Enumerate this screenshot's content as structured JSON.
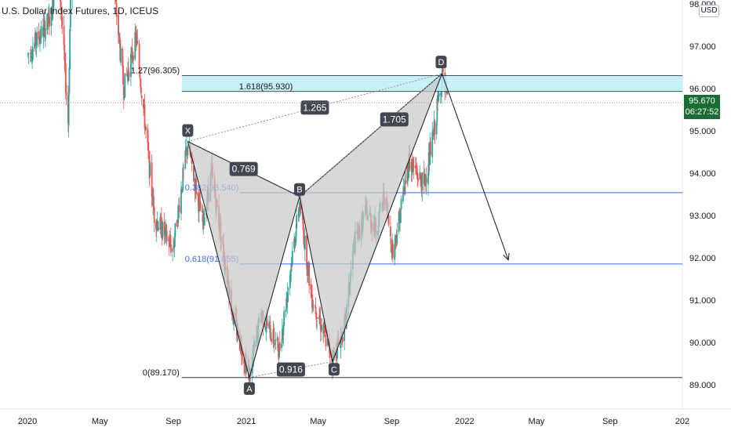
{
  "header": {
    "title": "U.S. Dollar Index Futures, 1D, ICEUS",
    "currency": "USD"
  },
  "price_badge": {
    "price": "95.670",
    "countdown": "06:27:52",
    "color": "#1b6b35"
  },
  "colors": {
    "up": "#26a69a",
    "down": "#ef5350",
    "pattern_fill": "#c8c8c8",
    "zone_fill": "#bdeef2",
    "fib_line": "#3b6ee8"
  },
  "chart_data": {
    "type": "candlestick",
    "symbol": "U.S. Dollar Index Futures",
    "timeframe": "1D",
    "exchange": "ICEUS",
    "x_ticks": [
      "2020",
      "May",
      "Sep",
      "2021",
      "May",
      "Sep",
      "2022",
      "May",
      "Sep",
      "202"
    ],
    "x_range": [
      "2020-01-01",
      "2022-12-31"
    ],
    "y_ticks": [
      "89.000",
      "90.000",
      "91.000",
      "92.000",
      "93.000",
      "94.000",
      "95.000",
      "96.000",
      "97.000",
      "98.000"
    ],
    "y_range": [
      88.5,
      98.0
    ],
    "last_price": 95.67,
    "pattern": {
      "points": [
        {
          "label": "X",
          "date": "2020-09-25",
          "value": 94.75
        },
        {
          "label": "A",
          "date": "2021-01-06",
          "value": 89.17
        },
        {
          "label": "B",
          "date": "2021-03-31",
          "value": 93.45
        },
        {
          "label": "C",
          "date": "2021-05-25",
          "value": 89.55
        },
        {
          "label": "D",
          "date": "2021-11-24",
          "value": 96.35
        }
      ],
      "ratios": [
        {
          "label": "0.769"
        },
        {
          "label": "0.916"
        },
        {
          "label": "1.705"
        },
        {
          "label": "1.265"
        }
      ]
    },
    "fib_levels": [
      {
        "label": "1.27(96.305)",
        "value": 96.305
      },
      {
        "label": "1.618(95.930)",
        "value": 95.93
      },
      {
        "label": "0.382(93.540)",
        "value": 93.54
      },
      {
        "label": "0.618(91.855)",
        "value": 91.855
      },
      {
        "label": "0(89.170)",
        "value": 89.17
      }
    ],
    "projection": {
      "from_date": "2021-11-24",
      "from_value": 96.35,
      "to_date": "2022-03-15",
      "to_value": 91.95
    }
  }
}
